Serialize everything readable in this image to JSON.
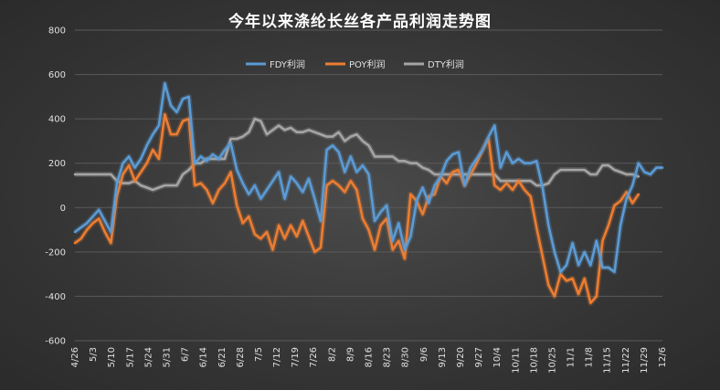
{
  "chart_data": {
    "type": "line",
    "title": "今年以来涤纶长丝各产品利润走势图",
    "xlabel": "",
    "ylabel": "",
    "ylim": [
      -600,
      800
    ],
    "yticks": [
      -600,
      -400,
      -200,
      0,
      200,
      400,
      600,
      800
    ],
    "x_tick_labels": [
      "4/26",
      "5/3",
      "5/10",
      "5/17",
      "5/24",
      "5/31",
      "6/7",
      "6/14",
      "6/21",
      "6/28",
      "7/5",
      "7/12",
      "7/19",
      "7/26",
      "8/2",
      "8/9",
      "8/16",
      "8/23",
      "8/30",
      "9/6",
      "9/13",
      "9/20",
      "9/27",
      "10/4",
      "10/11",
      "10/18",
      "10/25",
      "11/1",
      "11/8",
      "11/15",
      "11/22",
      "11/29",
      "12/6"
    ],
    "grid": true,
    "legend_position": "top-center",
    "series": [
      {
        "name": "FDY利润",
        "color": "#5b9bd5",
        "points": [
          [
            0,
            -110
          ],
          [
            1,
            -90
          ],
          [
            2,
            -70
          ],
          [
            3,
            -40
          ],
          [
            4,
            -10
          ],
          [
            5,
            -60
          ],
          [
            6,
            -110
          ],
          [
            7,
            110
          ],
          [
            8,
            200
          ],
          [
            9,
            230
          ],
          [
            10,
            180
          ],
          [
            11,
            220
          ],
          [
            12,
            280
          ],
          [
            13,
            330
          ],
          [
            14,
            370
          ],
          [
            15,
            560
          ],
          [
            16,
            460
          ],
          [
            17,
            430
          ],
          [
            18,
            490
          ],
          [
            19,
            500
          ],
          [
            20,
            200
          ],
          [
            21,
            230
          ],
          [
            22,
            210
          ],
          [
            23,
            240
          ],
          [
            24,
            220
          ],
          [
            25,
            260
          ],
          [
            26,
            290
          ],
          [
            27,
            170
          ],
          [
            28,
            110
          ],
          [
            29,
            60
          ],
          [
            30,
            100
          ],
          [
            31,
            40
          ],
          [
            32,
            80
          ],
          [
            33,
            120
          ],
          [
            34,
            160
          ],
          [
            35,
            40
          ],
          [
            36,
            140
          ],
          [
            37,
            110
          ],
          [
            38,
            70
          ],
          [
            39,
            130
          ],
          [
            40,
            40
          ],
          [
            41,
            -60
          ],
          [
            42,
            260
          ],
          [
            43,
            280
          ],
          [
            44,
            250
          ],
          [
            45,
            160
          ],
          [
            46,
            230
          ],
          [
            47,
            160
          ],
          [
            48,
            190
          ],
          [
            49,
            150
          ],
          [
            50,
            -60
          ],
          [
            51,
            -20
          ],
          [
            52,
            10
          ],
          [
            53,
            -150
          ],
          [
            54,
            -70
          ],
          [
            55,
            -190
          ],
          [
            56,
            -130
          ],
          [
            57,
            30
          ],
          [
            58,
            90
          ],
          [
            59,
            20
          ],
          [
            60,
            100
          ],
          [
            61,
            140
          ],
          [
            62,
            210
          ],
          [
            63,
            240
          ],
          [
            64,
            250
          ],
          [
            65,
            100
          ],
          [
            66,
            180
          ],
          [
            67,
            220
          ],
          [
            68,
            260
          ],
          [
            69,
            320
          ],
          [
            70,
            370
          ],
          [
            71,
            180
          ],
          [
            72,
            250
          ],
          [
            73,
            200
          ],
          [
            74,
            220
          ],
          [
            75,
            200
          ],
          [
            76,
            200
          ],
          [
            77,
            210
          ],
          [
            78,
            90
          ],
          [
            79,
            -80
          ],
          [
            80,
            -200
          ],
          [
            81,
            -290
          ],
          [
            82,
            -260
          ],
          [
            83,
            -160
          ],
          [
            84,
            -260
          ],
          [
            85,
            -200
          ],
          [
            86,
            -260
          ],
          [
            87,
            -150
          ],
          [
            88,
            -270
          ],
          [
            89,
            -270
          ],
          [
            90,
            -290
          ],
          [
            91,
            -80
          ],
          [
            92,
            40
          ],
          [
            93,
            100
          ],
          [
            94,
            200
          ],
          [
            95,
            160
          ],
          [
            96,
            150
          ],
          [
            97,
            180
          ],
          [
            98,
            180
          ]
        ]
      },
      {
        "name": "POY利润",
        "color": "#ed7d31",
        "points": [
          [
            0,
            -160
          ],
          [
            1,
            -140
          ],
          [
            2,
            -100
          ],
          [
            3,
            -70
          ],
          [
            4,
            -50
          ],
          [
            5,
            -110
          ],
          [
            6,
            -160
          ],
          [
            7,
            50
          ],
          [
            8,
            150
          ],
          [
            9,
            190
          ],
          [
            10,
            120
          ],
          [
            11,
            160
          ],
          [
            12,
            200
          ],
          [
            13,
            260
          ],
          [
            14,
            220
          ],
          [
            15,
            420
          ],
          [
            16,
            330
          ],
          [
            17,
            330
          ],
          [
            18,
            390
          ],
          [
            19,
            400
          ],
          [
            20,
            100
          ],
          [
            21,
            110
          ],
          [
            22,
            80
          ],
          [
            23,
            20
          ],
          [
            24,
            80
          ],
          [
            25,
            110
          ],
          [
            26,
            160
          ],
          [
            27,
            10
          ],
          [
            28,
            -70
          ],
          [
            29,
            -40
          ],
          [
            30,
            -120
          ],
          [
            31,
            -140
          ],
          [
            32,
            -110
          ],
          [
            33,
            -190
          ],
          [
            34,
            -80
          ],
          [
            35,
            -140
          ],
          [
            36,
            -80
          ],
          [
            37,
            -130
          ],
          [
            38,
            -60
          ],
          [
            39,
            -130
          ],
          [
            40,
            -200
          ],
          [
            41,
            -180
          ],
          [
            42,
            100
          ],
          [
            43,
            120
          ],
          [
            44,
            100
          ],
          [
            45,
            70
          ],
          [
            46,
            120
          ],
          [
            47,
            80
          ],
          [
            48,
            -50
          ],
          [
            49,
            -100
          ],
          [
            50,
            -190
          ],
          [
            51,
            -80
          ],
          [
            52,
            -50
          ],
          [
            53,
            -190
          ],
          [
            54,
            -150
          ],
          [
            55,
            -230
          ],
          [
            56,
            60
          ],
          [
            57,
            30
          ],
          [
            58,
            -30
          ],
          [
            59,
            50
          ],
          [
            60,
            60
          ],
          [
            61,
            140
          ],
          [
            62,
            110
          ],
          [
            63,
            160
          ],
          [
            64,
            170
          ],
          [
            65,
            100
          ],
          [
            66,
            150
          ],
          [
            67,
            200
          ],
          [
            68,
            260
          ],
          [
            69,
            310
          ],
          [
            70,
            100
          ],
          [
            71,
            80
          ],
          [
            72,
            110
          ],
          [
            73,
            80
          ],
          [
            74,
            120
          ],
          [
            75,
            80
          ],
          [
            76,
            50
          ],
          [
            77,
            -90
          ],
          [
            78,
            -220
          ],
          [
            79,
            -350
          ],
          [
            80,
            -400
          ],
          [
            81,
            -300
          ],
          [
            82,
            -330
          ],
          [
            83,
            -320
          ],
          [
            84,
            -390
          ],
          [
            85,
            -320
          ],
          [
            86,
            -430
          ],
          [
            87,
            -400
          ],
          [
            88,
            -150
          ],
          [
            89,
            -80
          ],
          [
            90,
            10
          ],
          [
            91,
            30
          ],
          [
            92,
            70
          ],
          [
            93,
            20
          ],
          [
            94,
            60
          ]
        ]
      },
      {
        "name": "DTY利润",
        "color": "#a5a5a5",
        "points": [
          [
            0,
            150
          ],
          [
            1,
            150
          ],
          [
            2,
            150
          ],
          [
            3,
            150
          ],
          [
            4,
            150
          ],
          [
            5,
            150
          ],
          [
            6,
            150
          ],
          [
            7,
            120
          ],
          [
            8,
            110
          ],
          [
            9,
            110
          ],
          [
            10,
            120
          ],
          [
            11,
            100
          ],
          [
            12,
            90
          ],
          [
            13,
            80
          ],
          [
            14,
            90
          ],
          [
            15,
            100
          ],
          [
            16,
            100
          ],
          [
            17,
            100
          ],
          [
            18,
            150
          ],
          [
            19,
            170
          ],
          [
            20,
            200
          ],
          [
            21,
            200
          ],
          [
            22,
            220
          ],
          [
            23,
            220
          ],
          [
            24,
            220
          ],
          [
            25,
            220
          ],
          [
            26,
            310
          ],
          [
            27,
            310
          ],
          [
            28,
            320
          ],
          [
            29,
            340
          ],
          [
            30,
            400
          ],
          [
            31,
            390
          ],
          [
            32,
            330
          ],
          [
            33,
            350
          ],
          [
            34,
            370
          ],
          [
            35,
            350
          ],
          [
            36,
            360
          ],
          [
            37,
            340
          ],
          [
            38,
            340
          ],
          [
            39,
            350
          ],
          [
            40,
            340
          ],
          [
            41,
            330
          ],
          [
            42,
            320
          ],
          [
            43,
            320
          ],
          [
            44,
            340
          ],
          [
            45,
            300
          ],
          [
            46,
            320
          ],
          [
            47,
            330
          ],
          [
            48,
            300
          ],
          [
            49,
            280
          ],
          [
            50,
            230
          ],
          [
            51,
            230
          ],
          [
            52,
            230
          ],
          [
            53,
            230
          ],
          [
            54,
            210
          ],
          [
            55,
            210
          ],
          [
            56,
            200
          ],
          [
            57,
            200
          ],
          [
            58,
            180
          ],
          [
            59,
            170
          ],
          [
            60,
            150
          ],
          [
            61,
            150
          ],
          [
            62,
            150
          ],
          [
            63,
            150
          ],
          [
            64,
            150
          ],
          [
            65,
            150
          ],
          [
            66,
            150
          ],
          [
            67,
            150
          ],
          [
            68,
            150
          ],
          [
            69,
            150
          ],
          [
            70,
            150
          ],
          [
            71,
            120
          ],
          [
            72,
            120
          ],
          [
            73,
            120
          ],
          [
            74,
            120
          ],
          [
            75,
            120
          ],
          [
            76,
            120
          ],
          [
            77,
            100
          ],
          [
            78,
            100
          ],
          [
            79,
            110
          ],
          [
            80,
            150
          ],
          [
            81,
            170
          ],
          [
            82,
            170
          ],
          [
            83,
            170
          ],
          [
            84,
            170
          ],
          [
            85,
            170
          ],
          [
            86,
            150
          ],
          [
            87,
            150
          ],
          [
            88,
            190
          ],
          [
            89,
            190
          ],
          [
            90,
            170
          ],
          [
            91,
            160
          ],
          [
            92,
            150
          ],
          [
            93,
            150
          ],
          [
            94,
            140
          ]
        ]
      }
    ]
  }
}
